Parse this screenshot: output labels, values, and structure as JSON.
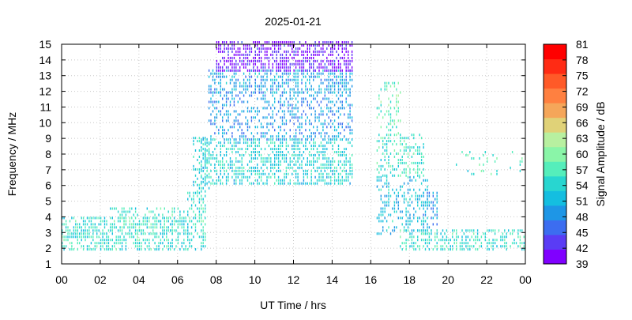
{
  "chart_data": {
    "type": "heatmap",
    "title": "2025-01-21",
    "xlabel": "UT Time / hrs",
    "ylabel": "Frequency / MHz",
    "colorbar_label": "Signal Amplitude / dB",
    "xlim": [
      0,
      24
    ],
    "ylim": [
      1,
      15
    ],
    "x_ticks": [
      "00",
      "02",
      "04",
      "06",
      "08",
      "10",
      "12",
      "14",
      "16",
      "18",
      "20",
      "22",
      "00"
    ],
    "y_ticks": [
      "1",
      "2",
      "3",
      "4",
      "5",
      "6",
      "7",
      "8",
      "9",
      "10",
      "11",
      "12",
      "13",
      "14",
      "15"
    ],
    "colorbar_ticks": [
      "39",
      "42",
      "45",
      "48",
      "51",
      "54",
      "57",
      "60",
      "63",
      "66",
      "69",
      "72",
      "75",
      "78",
      "81"
    ],
    "colorbar_range": [
      39,
      81
    ],
    "colorbar_colors": [
      "#8000ff",
      "#5a3cf5",
      "#3c6df0",
      "#1e96e6",
      "#14bee0",
      "#28d6d0",
      "#55eebb",
      "#8af5a8",
      "#b8f0a0",
      "#e0d278",
      "#f5a65a",
      "#ff8040",
      "#ff5a28",
      "#ff2b14",
      "#ff0000"
    ],
    "grid": true,
    "legend": "colorbar-right",
    "bands": [
      {
        "t0": 0.0,
        "t1": 6.6,
        "f0": 1.8,
        "f1": 3.9,
        "level": 55,
        "density": 0.55
      },
      {
        "t0": 2.5,
        "t1": 6.3,
        "f0": 2.8,
        "f1": 4.5,
        "level": 56,
        "density": 0.3
      },
      {
        "t0": 6.5,
        "t1": 7.4,
        "f0": 1.8,
        "f1": 5.5,
        "level": 55,
        "density": 0.45
      },
      {
        "t0": 6.8,
        "t1": 7.6,
        "f0": 5.5,
        "f1": 9.0,
        "level": 54,
        "density": 0.35
      },
      {
        "t0": 7.2,
        "t1": 15.0,
        "f0": 6.0,
        "f1": 8.8,
        "level": 54,
        "density": 0.55
      },
      {
        "t0": 7.6,
        "t1": 15.0,
        "f0": 8.8,
        "f1": 11.8,
        "level": 49,
        "density": 0.4
      },
      {
        "t0": 7.6,
        "t1": 15.0,
        "f0": 11.8,
        "f1": 13.2,
        "level": 50,
        "density": 0.55
      },
      {
        "t0": 8.0,
        "t1": 15.0,
        "f0": 13.2,
        "f1": 15.0,
        "level": 41,
        "density": 0.65
      },
      {
        "t0": 16.3,
        "t1": 18.8,
        "f0": 6.5,
        "f1": 9.2,
        "level": 56,
        "density": 0.4
      },
      {
        "t0": 16.3,
        "t1": 17.6,
        "f0": 9.2,
        "f1": 12.4,
        "level": 58,
        "density": 0.3
      },
      {
        "t0": 16.3,
        "t1": 19.0,
        "f0": 2.8,
        "f1": 6.5,
        "level": 52,
        "density": 0.35
      },
      {
        "t0": 18.6,
        "t1": 19.5,
        "f0": 3.0,
        "f1": 5.5,
        "level": 50,
        "density": 0.5
      },
      {
        "t0": 17.5,
        "t1": 24.0,
        "f0": 1.8,
        "f1": 3.2,
        "level": 55,
        "density": 0.5
      },
      {
        "t0": 20.0,
        "t1": 24.0,
        "f0": 6.6,
        "f1": 8.2,
        "level": 56,
        "density": 0.08
      }
    ]
  }
}
